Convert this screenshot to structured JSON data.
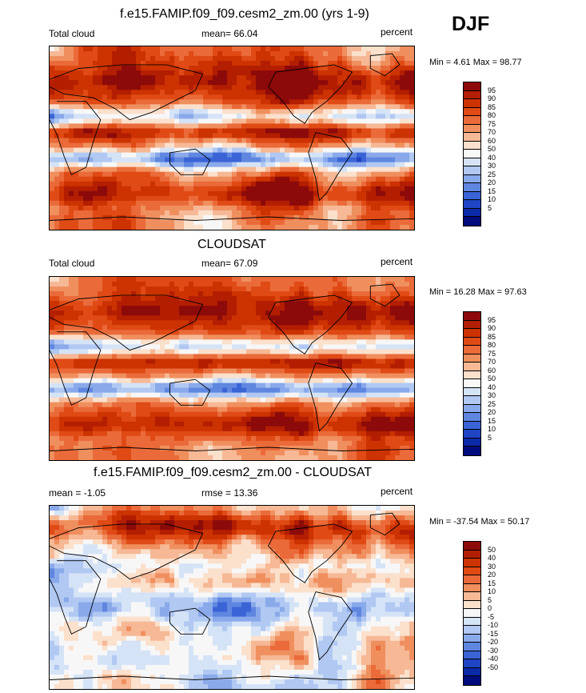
{
  "season": "DJF",
  "panels": [
    {
      "title": "f.e15.FAMIP.f09_f09.cesm2_zm.00 (yrs 1-9)",
      "variable": "Total cloud",
      "stat_text": "mean=  66.04",
      "units": "percent",
      "minmax": "Min =   4.61 Max =  98.77"
    },
    {
      "title": "CLOUDSAT",
      "variable": "Total cloud",
      "stat_text": "mean=  67.09",
      "units": "percent",
      "minmax": "Min =  16.28 Max =  97.63"
    },
    {
      "title": "f.e15.FAMIP.f09_f09.cesm2_zm.00 - CLOUDSAT",
      "variable": "mean =  -1.05",
      "stat_text": "rmse =  13.36",
      "units": "percent",
      "minmax": "Min = -37.54 Max =  50.17"
    }
  ],
  "chart_data": [
    {
      "type": "heatmap",
      "title": "f.e15.FAMIP.f09_f09.cesm2_zm.00 (yrs 1-9)",
      "variable": "Total cloud",
      "units": "percent",
      "mean": 66.04,
      "min": 4.61,
      "max": 98.77,
      "levels": [
        95,
        90,
        85,
        80,
        75,
        70,
        60,
        50,
        40,
        30,
        25,
        20,
        15,
        10,
        5
      ],
      "colors": [
        "#8c0a0a",
        "#b31e00",
        "#cc3300",
        "#e04a15",
        "#ea6a3a",
        "#f08f5e",
        "#f6b895",
        "#fbe0cc",
        "#f7f7f7",
        "#d5e3f7",
        "#b0c8f2",
        "#8aa9ea",
        "#5f87e0",
        "#3a64d6",
        "#1f44c4",
        "#0a2aa8",
        "#000c7c"
      ]
    },
    {
      "type": "heatmap",
      "title": "CLOUDSAT",
      "variable": "Total cloud",
      "units": "percent",
      "mean": 67.09,
      "min": 16.28,
      "max": 97.63,
      "levels": [
        95,
        90,
        85,
        80,
        75,
        70,
        60,
        50,
        40,
        30,
        25,
        20,
        15,
        10,
        5
      ],
      "colors": [
        "#8c0a0a",
        "#b31e00",
        "#cc3300",
        "#e04a15",
        "#ea6a3a",
        "#f08f5e",
        "#f6b895",
        "#fbe0cc",
        "#f7f7f7",
        "#d5e3f7",
        "#b0c8f2",
        "#8aa9ea",
        "#5f87e0",
        "#3a64d6",
        "#1f44c4",
        "#0a2aa8",
        "#000c7c"
      ]
    },
    {
      "type": "heatmap",
      "title": "f.e15.FAMIP.f09_f09.cesm2_zm.00 - CLOUDSAT",
      "units": "percent",
      "mean": -1.05,
      "rmse": 13.36,
      "min": -37.54,
      "max": 50.17,
      "levels": [
        50,
        40,
        30,
        20,
        15,
        10,
        5,
        0,
        -5,
        -10,
        -15,
        -20,
        -30,
        -40,
        -50
      ],
      "colors": [
        "#8c0a0a",
        "#b31e00",
        "#cc3300",
        "#e04a15",
        "#ea6a3a",
        "#f08f5e",
        "#f6b895",
        "#fbe0cc",
        "#f7f7f7",
        "#d5e3f7",
        "#b0c8f2",
        "#8aa9ea",
        "#5f87e0",
        "#3a64d6",
        "#1f44c4",
        "#0a2aa8",
        "#000c7c"
      ]
    }
  ]
}
